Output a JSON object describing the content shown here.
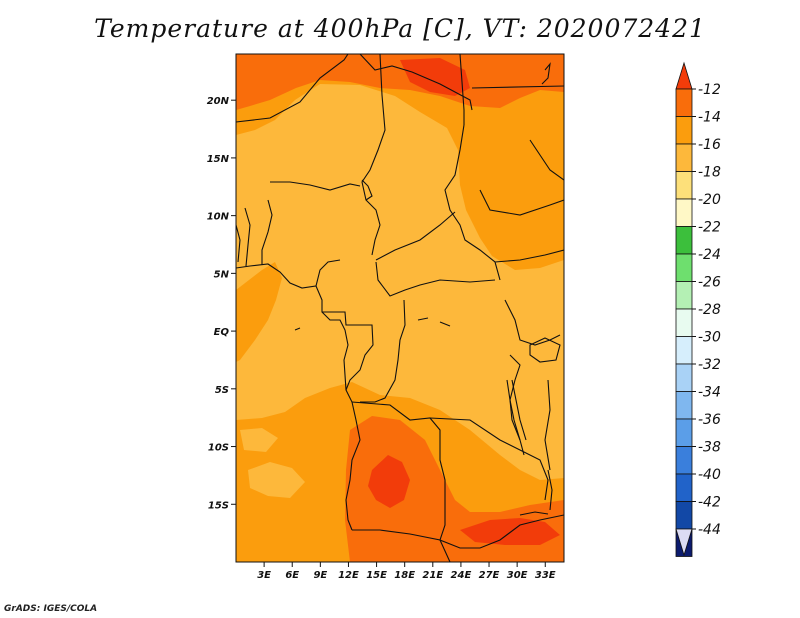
{
  "title": "Temperature at 400hPa [C], VT: 2020072421",
  "credit": "GrADS: IGES/COLA",
  "map": {
    "lon_range": [
      0,
      35
    ],
    "lat_range": [
      -20,
      24
    ],
    "lat_ticks": [
      {
        "value": 20,
        "label": "20N"
      },
      {
        "value": 15,
        "label": "15N"
      },
      {
        "value": 10,
        "label": "10N"
      },
      {
        "value": 5,
        "label": "5N"
      },
      {
        "value": 0,
        "label": "EQ"
      },
      {
        "value": -5,
        "label": "5S"
      },
      {
        "value": -10,
        "label": "10S"
      },
      {
        "value": -15,
        "label": "15S"
      }
    ],
    "lon_ticks": [
      {
        "value": 3,
        "label": "3E"
      },
      {
        "value": 6,
        "label": "6E"
      },
      {
        "value": 9,
        "label": "9E"
      },
      {
        "value": 12,
        "label": "12E"
      },
      {
        "value": 15,
        "label": "15E"
      },
      {
        "value": 18,
        "label": "18E"
      },
      {
        "value": 21,
        "label": "21E"
      },
      {
        "value": 24,
        "label": "24E"
      },
      {
        "value": 27,
        "label": "27E"
      },
      {
        "value": 30,
        "label": "30E"
      },
      {
        "value": 33,
        "label": "33E"
      }
    ],
    "colors": {
      "range_-18_-16": "#fdb83b",
      "range_-16_-14": "#fb9d0d",
      "range_-14_-12": "#f96d0b",
      "range_-12_up": "#f23c0a",
      "borders": "#111111"
    }
  },
  "colorbar": {
    "levels": [
      "-12",
      "-14",
      "-16",
      "-18",
      "-20",
      "-22",
      "-24",
      "-26",
      "-28",
      "-30",
      "-32",
      "-34",
      "-36",
      "-38",
      "-40",
      "-42",
      "-44"
    ],
    "top_color": "#f23c0a",
    "bottom_color": "#dcdcf4",
    "colors": [
      "#f96d0b",
      "#fb9d0d",
      "#fdb83b",
      "#fde07a",
      "#fff8c6",
      "#3cbf3c",
      "#6edf6e",
      "#b4f0b4",
      "#e8fbf0",
      "#d6eefc",
      "#a9d2f6",
      "#7fb7ef",
      "#5b9ee8",
      "#3a7fdc",
      "#2163c9",
      "#1248a6",
      "#0c1b6e"
    ]
  }
}
